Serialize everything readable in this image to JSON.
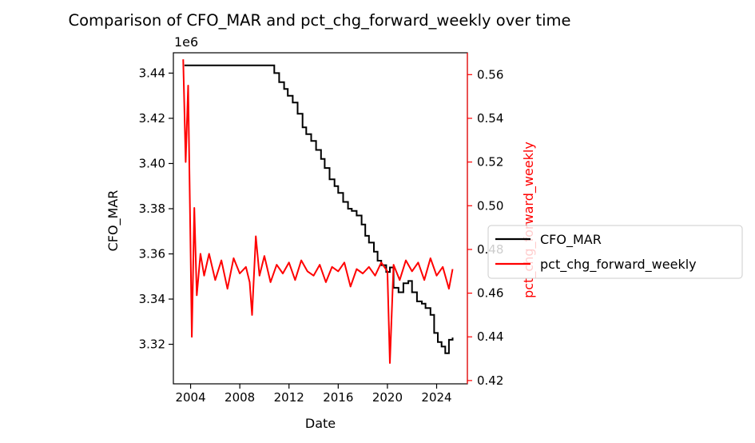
{
  "chart_data": {
    "type": "line",
    "title": "Comparison of CFO_MAR and pct_chg_forward_weekly over time",
    "xlabel": "Date",
    "ylabel_left": "CFO_MAR",
    "ylabel_right": "pct_chg_forward_weekly",
    "left_offset_label": "1e6",
    "xlim": [
      2002.6,
      2026.5
    ],
    "ylim_left": [
      3.3025,
      3.449
    ],
    "ylim_right": [
      0.4185,
      0.57
    ],
    "x_ticks": [
      2004,
      2008,
      2012,
      2016,
      2020,
      2024
    ],
    "x_tick_labels": [
      "2004",
      "2008",
      "2012",
      "2016",
      "2020",
      "2024"
    ],
    "y_left_ticks": [
      3.32,
      3.34,
      3.36,
      3.38,
      3.4,
      3.42,
      3.44
    ],
    "y_left_tick_labels": [
      "3.32",
      "3.34",
      "3.36",
      "3.38",
      "3.40",
      "3.42",
      "3.44"
    ],
    "y_right_ticks": [
      0.42,
      0.44,
      0.46,
      0.48,
      0.5,
      0.52,
      0.54,
      0.56
    ],
    "y_right_tick_labels": [
      "0.42",
      "0.44",
      "0.46",
      "0.48",
      "0.50",
      "0.52",
      "0.54",
      "0.56"
    ],
    "grid": false,
    "legend_position": "right, outside the plot",
    "series": [
      {
        "name": "CFO_MAR",
        "axis": "left",
        "color": "#000000",
        "x": [
          2003.5,
          2005,
          2008,
          2010.5,
          2010.8,
          2011.2,
          2011.6,
          2011.9,
          2012.3,
          2012.7,
          2013.1,
          2013.4,
          2013.8,
          2014.2,
          2014.6,
          2014.9,
          2015.3,
          2015.7,
          2016.0,
          2016.4,
          2016.8,
          2017.1,
          2017.5,
          2017.9,
          2018.2,
          2018.5,
          2018.9,
          2019.2,
          2019.5,
          2019.9,
          2020.2,
          2020.5,
          2020.9,
          2021.3,
          2021.7,
          2022.0,
          2022.4,
          2022.8,
          2023.1,
          2023.5,
          2023.8,
          2024.1,
          2024.4,
          2024.7,
          2025.0,
          2025.3
        ],
        "y": [
          3.4434,
          3.4434,
          3.4434,
          3.4434,
          3.44,
          3.436,
          3.433,
          3.43,
          3.427,
          3.422,
          3.416,
          3.413,
          3.41,
          3.406,
          3.402,
          3.398,
          3.393,
          3.39,
          3.387,
          3.383,
          3.38,
          3.379,
          3.377,
          3.373,
          3.368,
          3.365,
          3.361,
          3.357,
          3.355,
          3.352,
          3.354,
          3.345,
          3.343,
          3.347,
          3.348,
          3.343,
          3.339,
          3.338,
          3.336,
          3.333,
          3.325,
          3.321,
          3.319,
          3.316,
          3.322,
          3.323
        ]
      },
      {
        "name": "pct_chg_forward_weekly",
        "axis": "right",
        "color": "#ff0000",
        "x": [
          2003.4,
          2003.6,
          2003.8,
          2004.0,
          2004.1,
          2004.3,
          2004.5,
          2004.8,
          2005.1,
          2005.5,
          2006.0,
          2006.5,
          2007.0,
          2007.5,
          2008.0,
          2008.5,
          2008.8,
          2009.0,
          2009.3,
          2009.6,
          2010.0,
          2010.5,
          2011.0,
          2011.5,
          2012.0,
          2012.5,
          2013.0,
          2013.5,
          2014.0,
          2014.5,
          2015.0,
          2015.5,
          2016.0,
          2016.5,
          2017.0,
          2017.5,
          2018.0,
          2018.5,
          2019.0,
          2019.5,
          2020.0,
          2020.2,
          2020.5,
          2021.0,
          2021.5,
          2022.0,
          2022.5,
          2023.0,
          2023.5,
          2024.0,
          2024.5,
          2025.0,
          2025.3
        ],
        "y": [
          0.567,
          0.52,
          0.555,
          0.478,
          0.44,
          0.499,
          0.459,
          0.478,
          0.468,
          0.478,
          0.466,
          0.475,
          0.462,
          0.476,
          0.469,
          0.472,
          0.465,
          0.45,
          0.486,
          0.468,
          0.477,
          0.465,
          0.473,
          0.469,
          0.474,
          0.466,
          0.475,
          0.47,
          0.468,
          0.473,
          0.465,
          0.472,
          0.47,
          0.474,
          0.463,
          0.471,
          0.469,
          0.472,
          0.468,
          0.474,
          0.47,
          0.428,
          0.473,
          0.466,
          0.475,
          0.47,
          0.474,
          0.466,
          0.476,
          0.468,
          0.472,
          0.462,
          0.471
        ]
      }
    ]
  }
}
